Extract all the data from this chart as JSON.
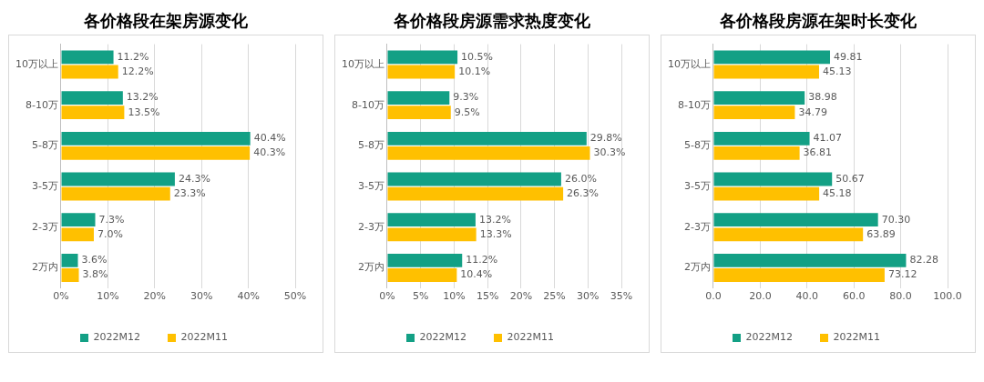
{
  "chart_data": [
    {
      "type": "bar",
      "title": "各价格段在架房源变化",
      "orientation": "horizontal",
      "categories": [
        "10万以上",
        "8-10万",
        "5-8万",
        "3-5万",
        "2-3万",
        "2万内"
      ],
      "series": [
        {
          "name": "2022M12",
          "color": "#13a085",
          "values": [
            11.2,
            13.2,
            40.4,
            24.3,
            7.3,
            3.6
          ],
          "value_labels": [
            "11.2%",
            "13.2%",
            "40.4%",
            "24.3%",
            "7.3%",
            "3.6%"
          ]
        },
        {
          "name": "2022M11",
          "color": "#ffc000",
          "values": [
            12.2,
            13.5,
            40.3,
            23.3,
            7.0,
            3.8
          ],
          "value_labels": [
            "12.2%",
            "13.5%",
            "40.3%",
            "23.3%",
            "7.0%",
            "3.8%"
          ]
        }
      ],
      "xlim": [
        0,
        50
      ],
      "xticks": [
        {
          "value": 0,
          "label": "0%"
        },
        {
          "value": 10,
          "label": "10%"
        },
        {
          "value": 20,
          "label": "20%"
        },
        {
          "value": 30,
          "label": "30%"
        },
        {
          "value": 40,
          "label": "40%"
        },
        {
          "value": 50,
          "label": "50%"
        }
      ],
      "grid": "x",
      "legend": "bottom"
    },
    {
      "type": "bar",
      "title": "各价格段房源需求热度变化",
      "orientation": "horizontal",
      "categories": [
        "10万以上",
        "8-10万",
        "5-8万",
        "3-5万",
        "2-3万",
        "2万内"
      ],
      "series": [
        {
          "name": "2022M12",
          "color": "#13a085",
          "values": [
            10.5,
            9.3,
            29.8,
            26.0,
            13.2,
            11.2
          ],
          "value_labels": [
            "10.5%",
            "9.3%",
            "29.8%",
            "26.0%",
            "13.2%",
            "11.2%"
          ]
        },
        {
          "name": "2022M11",
          "color": "#ffc000",
          "values": [
            10.1,
            9.5,
            30.3,
            26.3,
            13.3,
            10.4
          ],
          "value_labels": [
            "10.1%",
            "9.5%",
            "30.3%",
            "26.3%",
            "13.3%",
            "10.4%"
          ]
        }
      ],
      "xlim": [
        0,
        35
      ],
      "xticks": [
        {
          "value": 0,
          "label": "0%"
        },
        {
          "value": 5,
          "label": "5%"
        },
        {
          "value": 10,
          "label": "10%"
        },
        {
          "value": 15,
          "label": "15%"
        },
        {
          "value": 20,
          "label": "20%"
        },
        {
          "value": 25,
          "label": "25%"
        },
        {
          "value": 30,
          "label": "30%"
        },
        {
          "value": 35,
          "label": "35%"
        }
      ],
      "grid": "x",
      "legend": "bottom"
    },
    {
      "type": "bar",
      "title": "各价格段房源在架时长变化",
      "orientation": "horizontal",
      "categories": [
        "10万以上",
        "8-10万",
        "5-8万",
        "3-5万",
        "2-3万",
        "2万内"
      ],
      "series": [
        {
          "name": "2022M12",
          "color": "#13a085",
          "values": [
            49.81,
            38.98,
            41.07,
            50.67,
            70.3,
            82.28
          ],
          "value_labels": [
            "49.81",
            "38.98",
            "41.07",
            "50.67",
            "70.30",
            "82.28"
          ]
        },
        {
          "name": "2022M11",
          "color": "#ffc000",
          "values": [
            45.13,
            34.79,
            36.81,
            45.18,
            63.89,
            73.12
          ],
          "value_labels": [
            "45.13",
            "34.79",
            "36.81",
            "45.18",
            "63.89",
            "73.12"
          ]
        }
      ],
      "xlim": [
        0,
        100
      ],
      "xticks": [
        {
          "value": 0,
          "label": "0.0"
        },
        {
          "value": 20,
          "label": "20.0"
        },
        {
          "value": 40,
          "label": "40.0"
        },
        {
          "value": 60,
          "label": "60.0"
        },
        {
          "value": 80,
          "label": "80.0"
        },
        {
          "value": 100,
          "label": "100.0"
        }
      ],
      "grid": "x",
      "legend": "bottom"
    }
  ]
}
